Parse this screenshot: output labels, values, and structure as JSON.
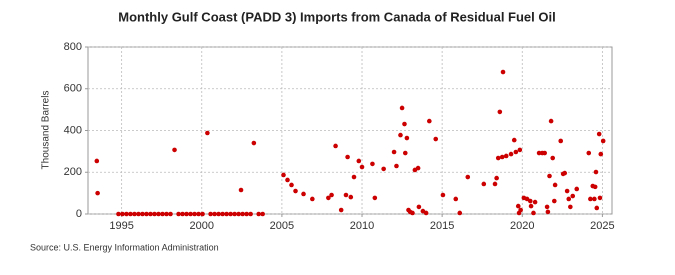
{
  "chart_data": {
    "type": "scatter",
    "title": "Monthly Gulf Coast (PADD 3) Imports from Canada of Residual Fuel Oil",
    "y_label": "Thousand Barrels",
    "source": "Source: U.S. Energy Information Administration",
    "color": "#cc0000",
    "grid": true,
    "xlim": [
      1992.9,
      2025.6
    ],
    "xticks": [
      1995,
      2000,
      2005,
      2010,
      2015,
      2020,
      2025
    ],
    "ylim": [
      0,
      800
    ],
    "yticks": [
      0,
      200,
      400,
      600,
      800
    ],
    "x": [
      1993.45,
      1993.5,
      1994.8,
      1995.05,
      1995.3,
      1995.55,
      1995.8,
      1996.05,
      1996.3,
      1996.55,
      1996.8,
      1997.05,
      1997.3,
      1997.55,
      1997.8,
      1998.05,
      1998.3,
      1998.55,
      1998.8,
      1999.05,
      1999.3,
      1999.55,
      1999.8,
      2000.05,
      2000.35,
      2000.55,
      2000.8,
      2001.05,
      2001.3,
      2001.55,
      2001.8,
      2002.05,
      2002.3,
      2002.45,
      2002.55,
      2002.8,
      2003.05,
      2003.25,
      2003.55,
      2003.8,
      2005.1,
      2005.35,
      2005.6,
      2005.85,
      2006.35,
      2006.9,
      2007.9,
      2008.1,
      2008.35,
      2008.7,
      2009.0,
      2009.1,
      2009.3,
      2009.5,
      2009.8,
      2010.0,
      2010.65,
      2010.8,
      2011.35,
      2012.0,
      2012.15,
      2012.4,
      2012.5,
      2012.65,
      2012.7,
      2012.8,
      2012.9,
      2013.0,
      2013.15,
      2013.3,
      2013.5,
      2013.55,
      2013.8,
      2014.0,
      2014.2,
      2014.6,
      2015.05,
      2015.85,
      2016.1,
      2016.6,
      2017.6,
      2018.3,
      2018.4,
      2018.5,
      2018.6,
      2018.75,
      2018.8,
      2019.0,
      2019.3,
      2019.5,
      2019.6,
      2019.75,
      2019.8,
      2019.85,
      2019.9,
      2020.1,
      2020.3,
      2020.5,
      2020.55,
      2020.7,
      2020.8,
      2021.05,
      2021.25,
      2021.4,
      2021.55,
      2021.6,
      2021.7,
      2021.8,
      2021.9,
      2022.0,
      2022.05,
      2022.4,
      2022.55,
      2022.65,
      2022.8,
      2022.9,
      2023.0,
      2023.15,
      2023.4,
      2024.15,
      2024.25,
      2024.4,
      2024.5,
      2024.55,
      2024.6,
      2024.65,
      2024.8,
      2024.85,
      2024.9,
      2025.05
    ],
    "values": [
      254,
      100,
      0,
      0,
      0,
      0,
      0,
      0,
      0,
      0,
      0,
      0,
      0,
      0,
      0,
      0,
      307,
      0,
      0,
      0,
      0,
      0,
      0,
      0,
      388,
      0,
      0,
      0,
      0,
      0,
      0,
      0,
      0,
      115,
      0,
      0,
      0,
      340,
      0,
      0,
      187,
      163,
      139,
      110,
      96,
      72,
      77,
      91,
      326,
      19,
      91,
      273,
      81,
      177,
      254,
      225,
      240,
      77,
      216,
      297,
      230,
      378,
      508,
      431,
      292,
      364,
      19,
      10,
      5,
      211,
      220,
      34,
      14,
      5,
      445,
      359,
      91,
      72,
      5,
      177,
      144,
      144,
      172,
      268,
      489,
      273,
      680,
      278,
      287,
      354,
      297,
      38,
      5,
      307,
      19,
      77,
      72,
      62,
      38,
      5,
      57,
      292,
      292,
      292,
      34,
      10,
      182,
      445,
      268,
      62,
      139,
      350,
      192,
      196,
      110,
      72,
      34,
      86,
      120,
      292,
      72,
      134,
      72,
      130,
      201,
      29,
      383,
      77,
      287,
      350
    ]
  }
}
